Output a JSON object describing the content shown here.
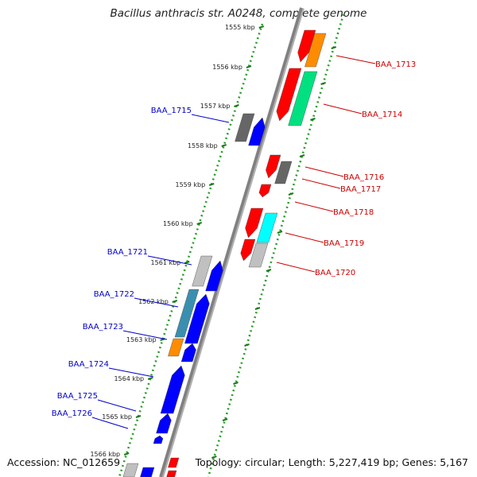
{
  "title": "Bacillus anthracis str. A0248, complete genome",
  "footer": {
    "accession": "Accession: NC_012659",
    "topology": "Topology: circular; Length: 5,227,419 bp; Genes: 5,167"
  },
  "ticks": [
    "1555 kbp",
    "1556 kbp",
    "1557 kbp",
    "1558 kbp",
    "1559 kbp",
    "1560 kbp",
    "1561 kbp",
    "1562 kbp",
    "1563 kbp",
    "1564 kbp",
    "1565 kbp",
    "1566 kbp"
  ],
  "colors": {
    "forward_label": "#cc0000",
    "reverse_label": "#0000cc",
    "backbone": "#808080",
    "dotted_track": "#2a9d2a"
  },
  "genes_forward": [
    {
      "label": "BAA_1713",
      "color": "#ff0000"
    },
    {
      "label": "BAA_1714",
      "color": "#ff0000"
    },
    {
      "label": "BAA_1716",
      "color": "#ff0000"
    },
    {
      "label": "BAA_1717",
      "color": "#666666"
    },
    {
      "label": "BAA_1718",
      "color": "#ff0000"
    },
    {
      "label": "BAA_1719",
      "color": "#ff0000"
    },
    {
      "label": "BAA_1720",
      "color": "#ff0000"
    }
  ],
  "genes_reverse": [
    {
      "label": "BAA_1715",
      "color": "#0000ff"
    },
    {
      "label": "BAA_1721",
      "color": "#0000ff"
    },
    {
      "label": "BAA_1722",
      "color": "#0000ff"
    },
    {
      "label": "BAA_1723",
      "color": "#0000ff"
    },
    {
      "label": "BAA_1724",
      "color": "#0000ff"
    },
    {
      "label": "BAA_1725",
      "color": "#0000ff"
    },
    {
      "label": "BAA_1726",
      "color": "#0000ff"
    }
  ]
}
